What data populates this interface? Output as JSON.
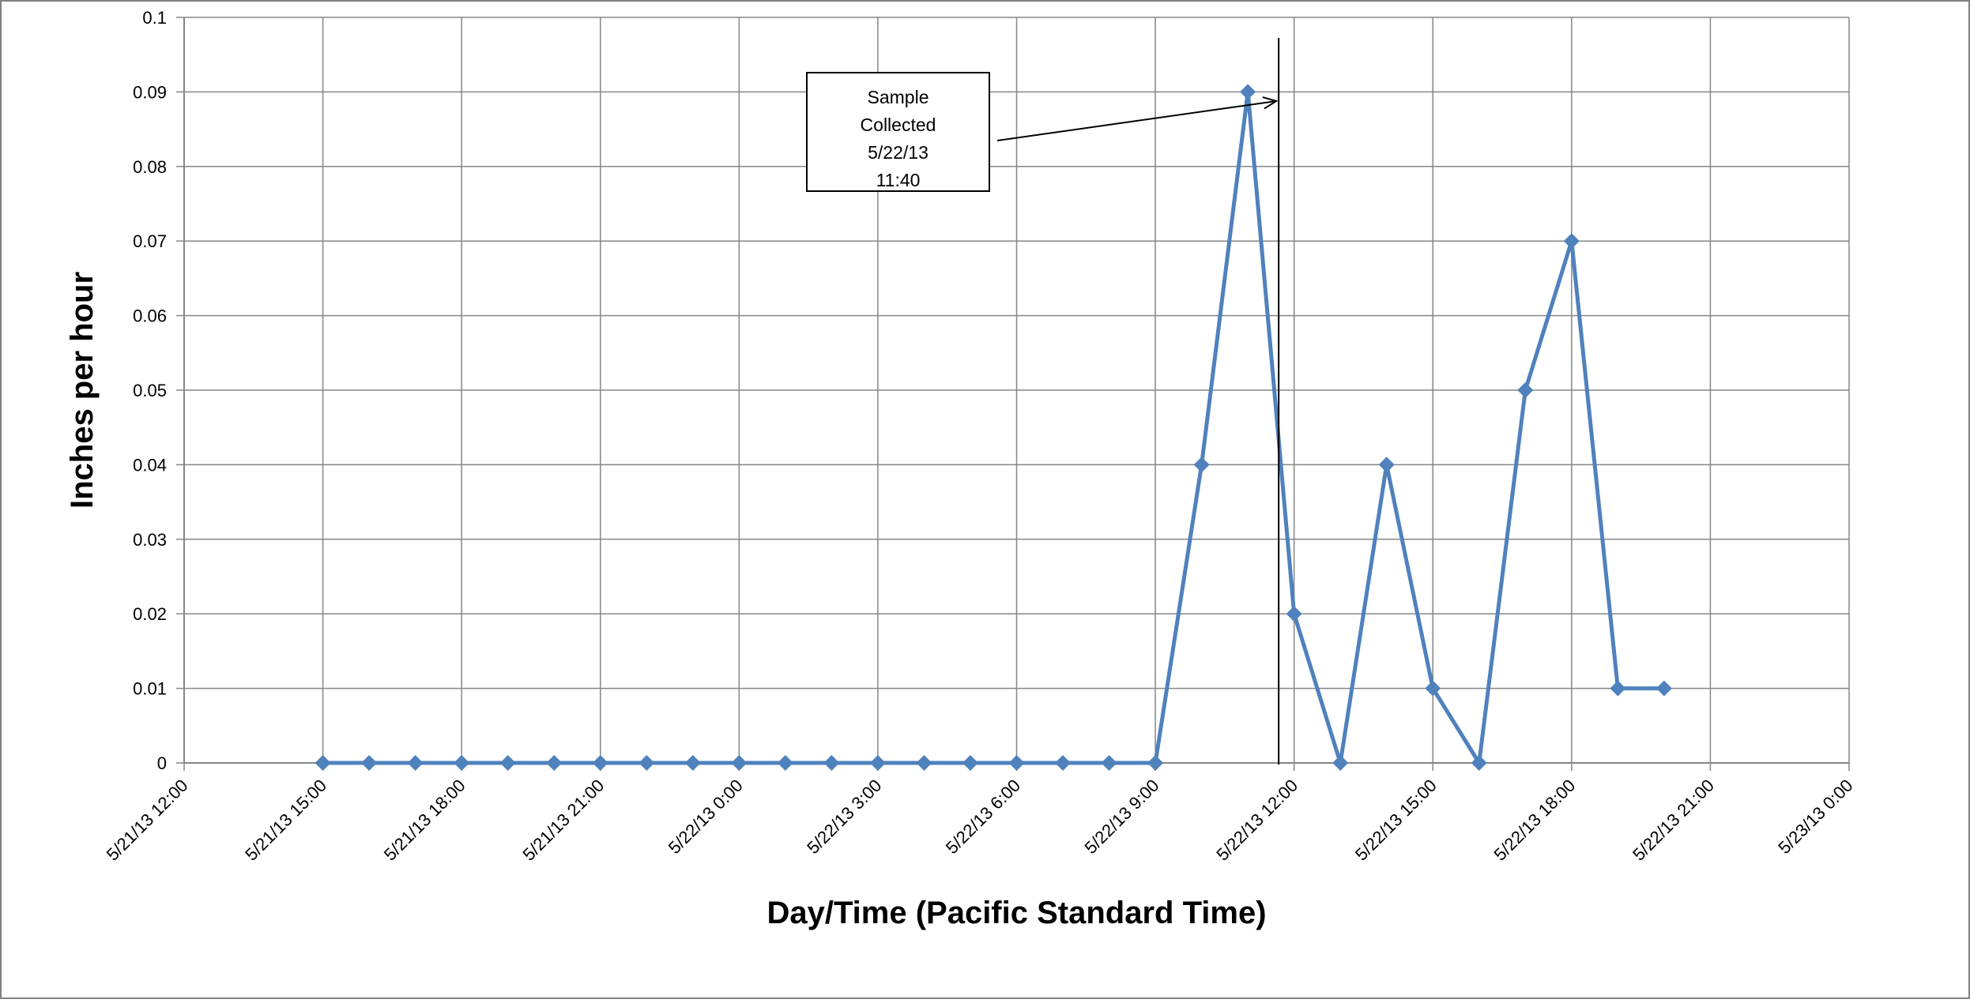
{
  "chart_data": {
    "type": "line",
    "title": "",
    "xlabel": "Day/Time (Pacific Standard Time)",
    "ylabel": "Inches per hour",
    "xlim": [
      "2013-05-21T12:00",
      "2013-05-23T00:00"
    ],
    "ylim": [
      0,
      0.1
    ],
    "grid": true,
    "legend": "none",
    "line_color": "#4F81BD",
    "y_ticks": [
      {
        "value": 0,
        "label": "0"
      },
      {
        "value": 0.01,
        "label": "0.01"
      },
      {
        "value": 0.02,
        "label": "0.02"
      },
      {
        "value": 0.03,
        "label": "0.03"
      },
      {
        "value": 0.04,
        "label": "0.04"
      },
      {
        "value": 0.05,
        "label": "0.05"
      },
      {
        "value": 0.06,
        "label": "0.06"
      },
      {
        "value": 0.07,
        "label": "0.07"
      },
      {
        "value": 0.08,
        "label": "0.08"
      },
      {
        "value": 0.09,
        "label": "0.09"
      },
      {
        "value": 0.1,
        "label": "0.1"
      }
    ],
    "x_ticks": [
      {
        "value": "2013-05-21T12:00",
        "label": "5/21/13 12:00"
      },
      {
        "value": "2013-05-21T15:00",
        "label": "5/21/13 15:00"
      },
      {
        "value": "2013-05-21T18:00",
        "label": "5/21/13 18:00"
      },
      {
        "value": "2013-05-21T21:00",
        "label": "5/21/13 21:00"
      },
      {
        "value": "2013-05-22T00:00",
        "label": "5/22/13 0:00"
      },
      {
        "value": "2013-05-22T03:00",
        "label": "5/22/13 3:00"
      },
      {
        "value": "2013-05-22T06:00",
        "label": "5/22/13 6:00"
      },
      {
        "value": "2013-05-22T09:00",
        "label": "5/22/13 9:00"
      },
      {
        "value": "2013-05-22T12:00",
        "label": "5/22/13 12:00"
      },
      {
        "value": "2013-05-22T15:00",
        "label": "5/22/13 15:00"
      },
      {
        "value": "2013-05-22T18:00",
        "label": "5/22/13 18:00"
      },
      {
        "value": "2013-05-22T21:00",
        "label": "5/22/13 21:00"
      },
      {
        "value": "2013-05-23T00:00",
        "label": "5/23/13 0:00"
      }
    ],
    "series": [
      {
        "x": [
          "2013-05-21T15:00",
          "2013-05-21T16:00",
          "2013-05-21T17:00",
          "2013-05-21T18:00",
          "2013-05-21T19:00",
          "2013-05-21T20:00",
          "2013-05-21T21:00",
          "2013-05-21T22:00",
          "2013-05-21T23:00",
          "2013-05-22T00:00",
          "2013-05-22T01:00",
          "2013-05-22T02:00",
          "2013-05-22T03:00",
          "2013-05-22T04:00",
          "2013-05-22T05:00",
          "2013-05-22T06:00",
          "2013-05-22T07:00",
          "2013-05-22T08:00",
          "2013-05-22T09:00",
          "2013-05-22T10:00",
          "2013-05-22T11:00",
          "2013-05-22T12:00",
          "2013-05-22T13:00",
          "2013-05-22T14:00",
          "2013-05-22T15:00",
          "2013-05-22T16:00",
          "2013-05-22T17:00",
          "2013-05-22T18:00",
          "2013-05-22T19:00",
          "2013-05-22T20:00"
        ],
        "y": [
          0,
          0,
          0,
          0,
          0,
          0,
          0,
          0,
          0,
          0,
          0,
          0,
          0,
          0,
          0,
          0,
          0,
          0,
          0,
          0.04,
          0.09,
          0.02,
          0,
          0.04,
          0.01,
          0,
          0.05,
          0.07,
          0.01,
          0.01
        ]
      }
    ],
    "annotation": {
      "lines": [
        "Sample",
        "Collected",
        "5/22/13",
        "11:40"
      ],
      "marker_time": "2013-05-22T11:40"
    }
  }
}
